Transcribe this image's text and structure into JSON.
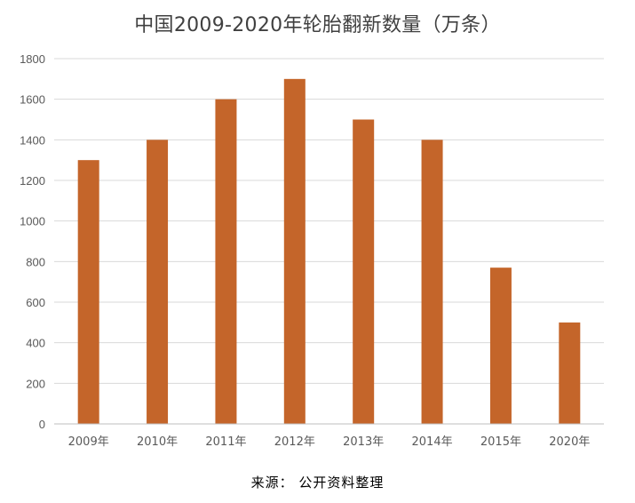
{
  "chart_data": {
    "type": "bar",
    "title": "中国2009-2020年轮胎翻新数量（万条）",
    "categories": [
      "2009年",
      "2010年",
      "2011年",
      "2012年",
      "2013年",
      "2014年",
      "2015年",
      "2020年"
    ],
    "values": [
      1300,
      1400,
      1600,
      1700,
      1500,
      1400,
      770,
      500
    ],
    "xlabel": "",
    "ylabel": "",
    "ylim": [
      0,
      1800
    ],
    "yticks": [
      0,
      200,
      400,
      600,
      800,
      1000,
      1200,
      1400,
      1600,
      1800
    ],
    "grid": true,
    "legend": "none",
    "bar_color": "#C4652A",
    "grid_color": "#D9D9D9",
    "axis_color": "#BFBFBF",
    "tick_label_color": "#595959"
  },
  "source": "来源： 公开资料整理"
}
